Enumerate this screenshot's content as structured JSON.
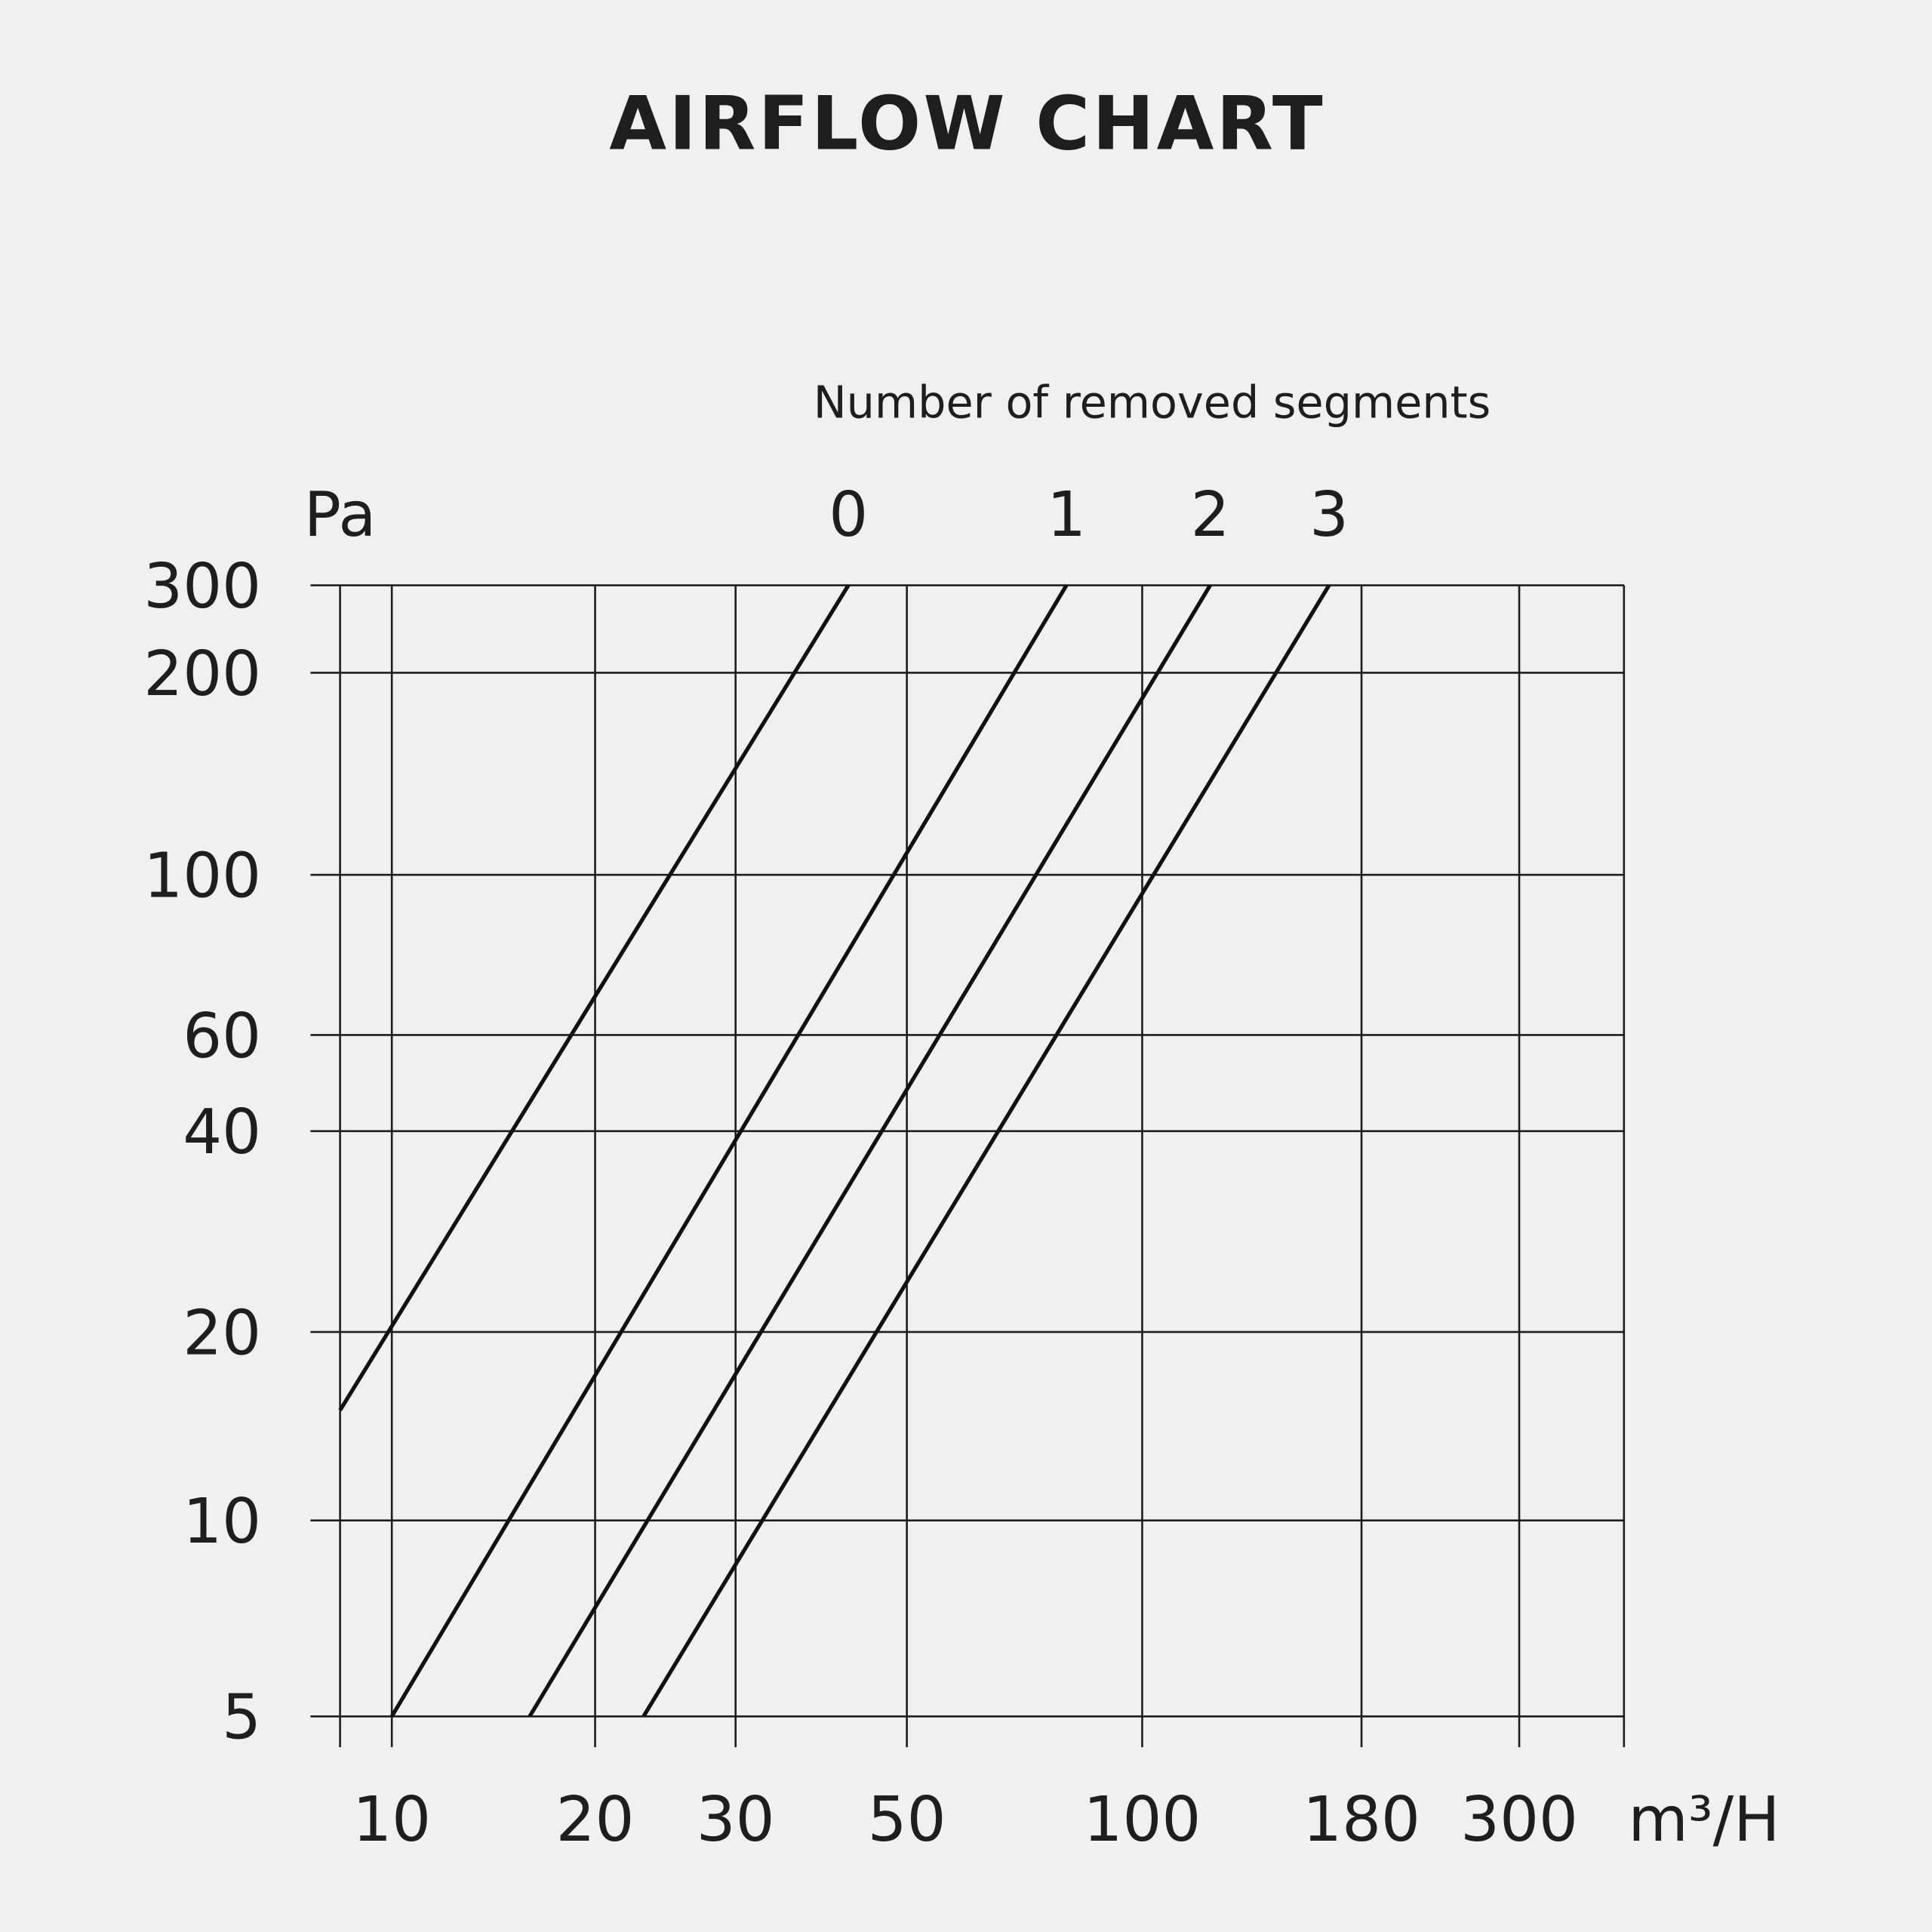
{
  "chart_data": {
    "type": "line",
    "title": "AIRFLOW CHART",
    "legend_title": "Number of removed segments",
    "xlabel": "m³/H",
    "ylabel": "Pa",
    "x_scale": "log",
    "y_scale": "log",
    "x_ticks": [
      10,
      20,
      30,
      50,
      100,
      180,
      300
    ],
    "y_ticks": [
      5,
      10,
      20,
      40,
      60,
      100,
      200,
      300
    ],
    "grid": true,
    "series": [
      {
        "name": "0",
        "points": [
          [
            8,
            15
          ],
          [
            42,
            300
          ]
        ]
      },
      {
        "name": "1",
        "points": [
          [
            10,
            5
          ],
          [
            80,
            300
          ]
        ]
      },
      {
        "name": "2",
        "points": [
          [
            16,
            5
          ],
          [
            120,
            300
          ]
        ]
      },
      {
        "name": "3",
        "points": [
          [
            23,
            5
          ],
          [
            165,
            300
          ]
        ]
      }
    ],
    "line_color": "#111111",
    "background": "#f0f0f0"
  }
}
